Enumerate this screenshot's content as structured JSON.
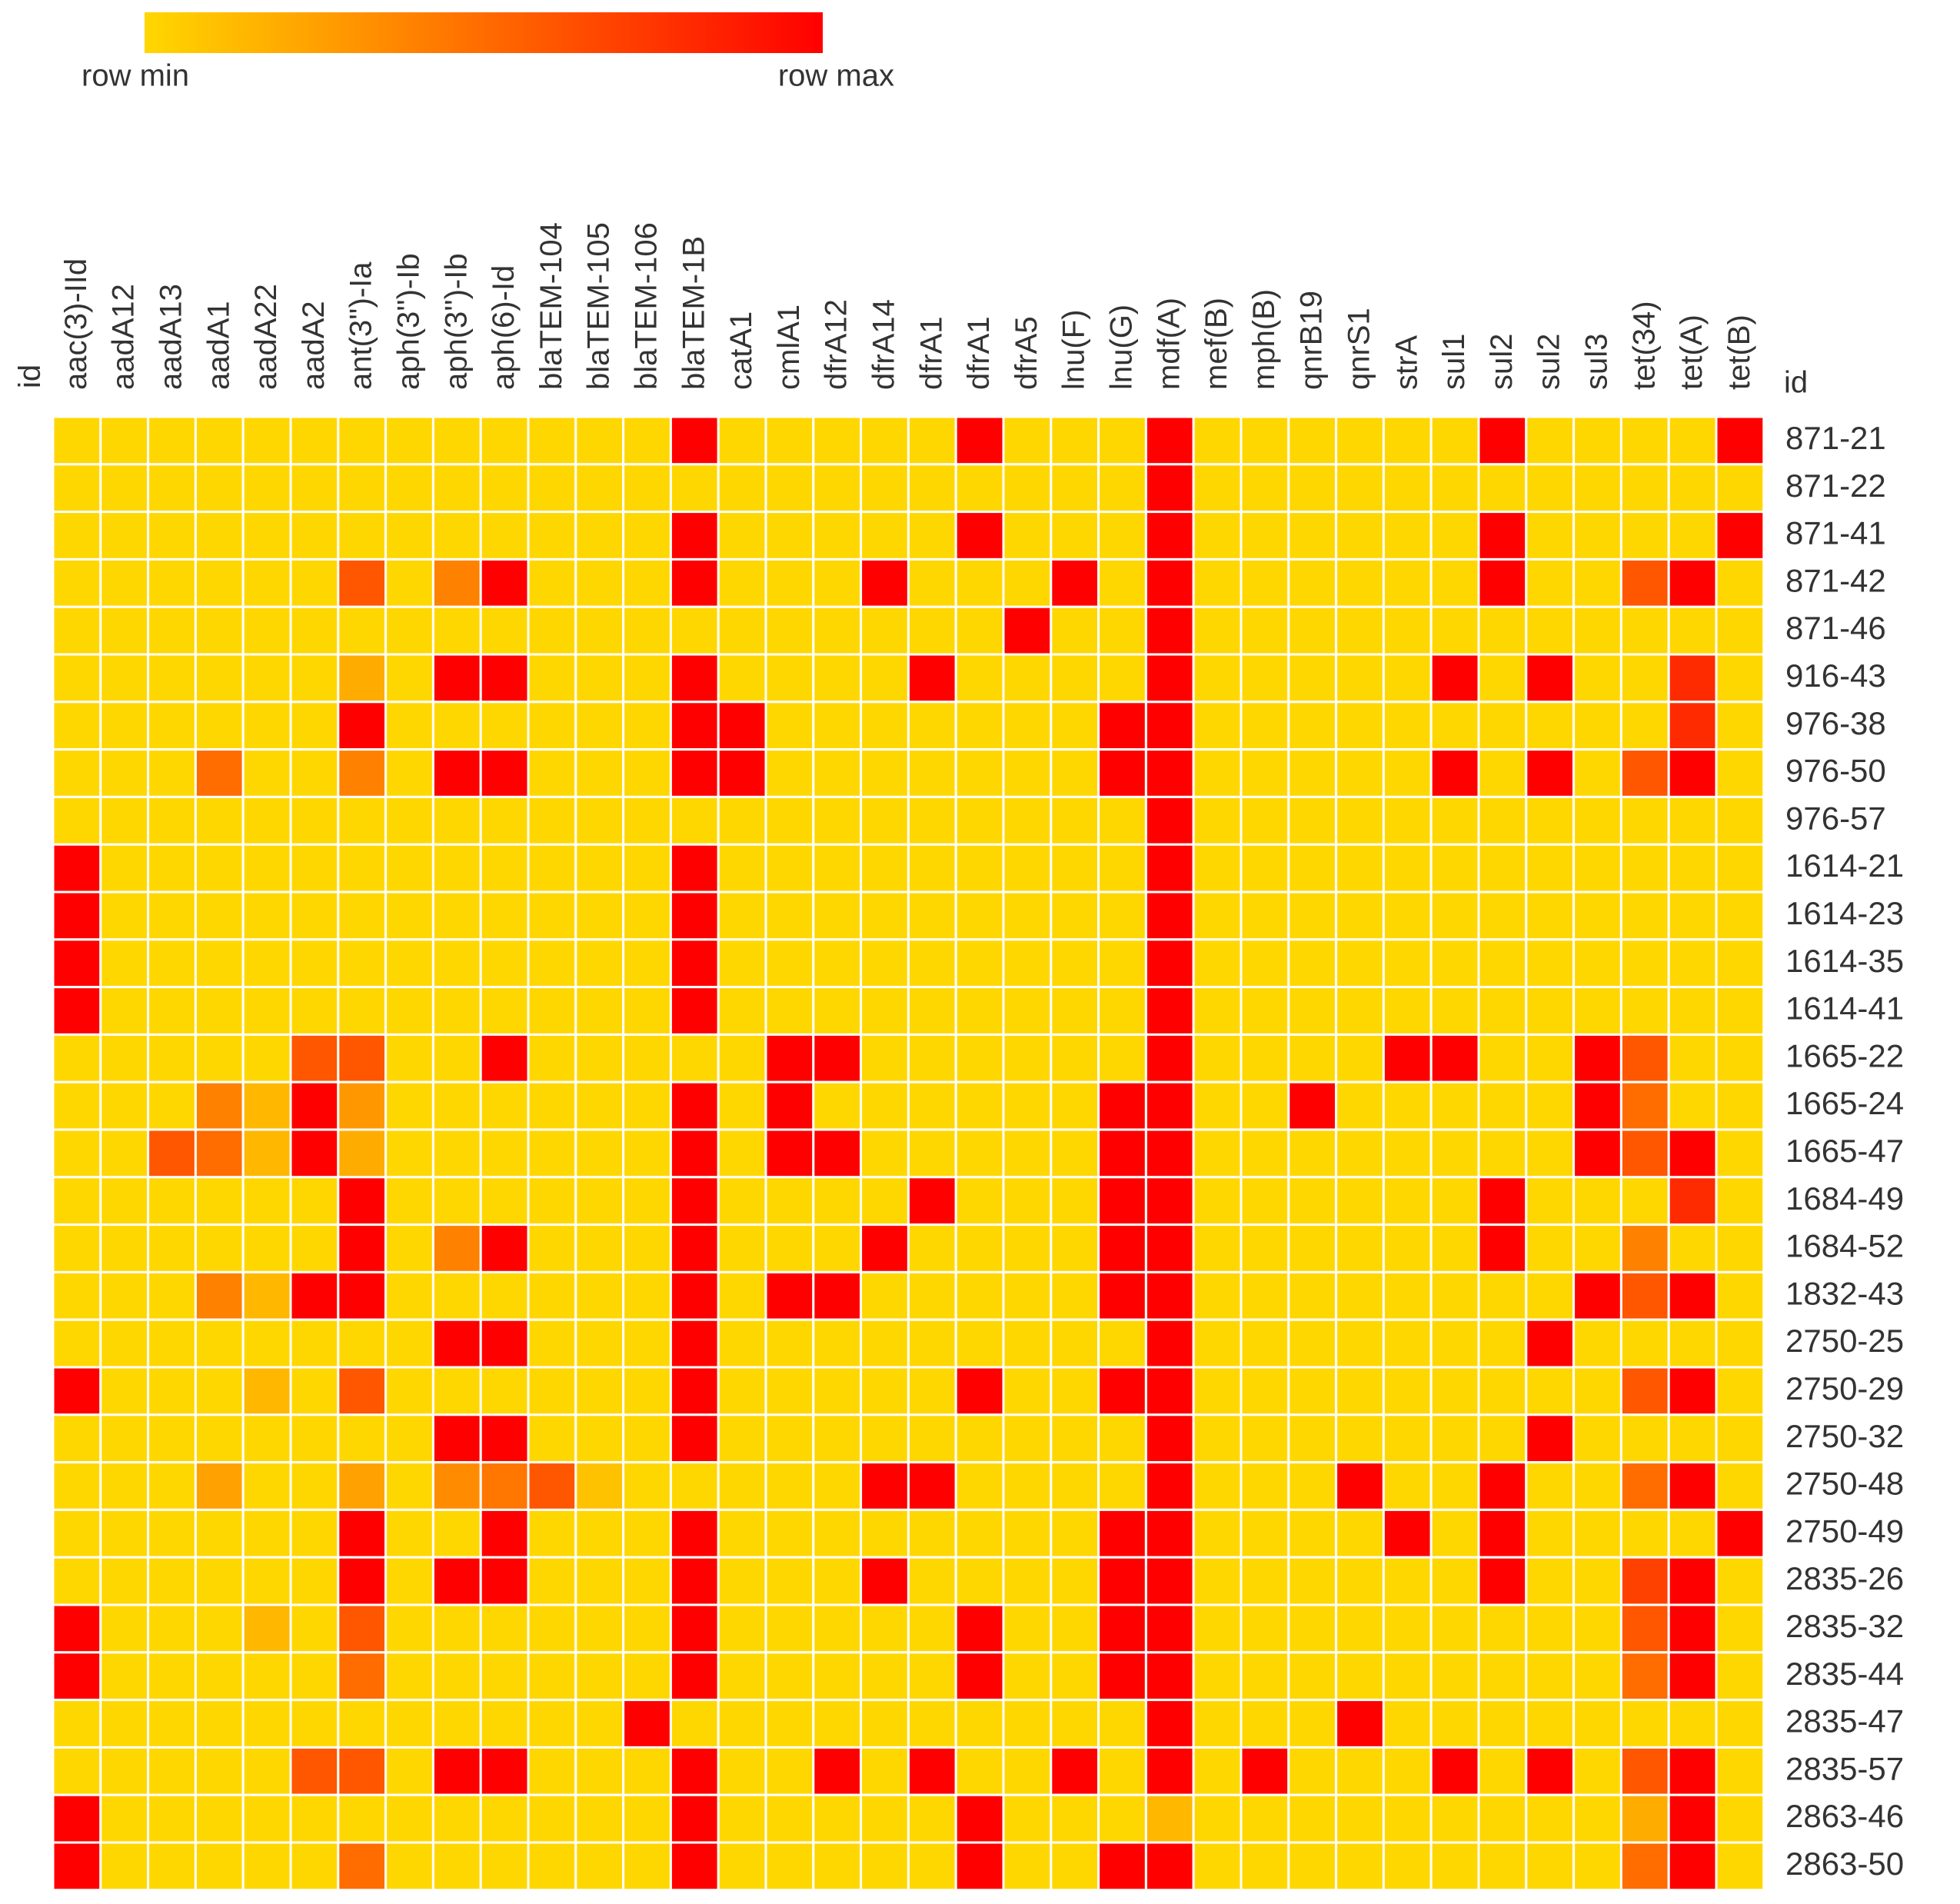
{
  "chart_data": {
    "type": "heatmap",
    "legend": {
      "min_label": "row min",
      "max_label": "row max"
    },
    "colorscale": [
      "#ffd700",
      "#ff0000"
    ],
    "column_header": "id",
    "row_header": "id",
    "columns": [
      "aac(3)-IId",
      "aadA12",
      "aadA13",
      "aadA1",
      "aadA22",
      "aadA2",
      "ant(3'')-Ia",
      "aph(3'')-Ib",
      "aph(3'')-Ib",
      "aph(6)-Id",
      "blaTEM-104",
      "blaTEM-105",
      "blaTEM-106",
      "blaTEM-1B",
      "catA1",
      "cmlA1",
      "dfrA12",
      "dfrA14",
      "dfrA1",
      "dfrA1",
      "dfrA5",
      "lnu(F)",
      "lnu(G)",
      "mdf(A)",
      "mef(B)",
      "mph(B)",
      "qnrB19",
      "qnrS1",
      "strA",
      "sul1",
      "sul2",
      "sul2",
      "sul3",
      "tet(34)",
      "tet(A)",
      "tet(B)"
    ],
    "rows": [
      "871-21",
      "871-22",
      "871-41",
      "871-42",
      "871-46",
      "916-43",
      "976-38",
      "976-50",
      "976-57",
      "1614-21",
      "1614-23",
      "1614-35",
      "1614-41",
      "1665-22",
      "1665-24",
      "1665-47",
      "1684-49",
      "1684-52",
      "1832-43",
      "2750-25",
      "2750-29",
      "2750-32",
      "2750-48",
      "2750-49",
      "2835-26",
      "2835-32",
      "2835-44",
      "2835-47",
      "2835-57",
      "2863-46",
      "2863-50"
    ],
    "values": [
      [
        0,
        0,
        0,
        0,
        0,
        0,
        0,
        0,
        0,
        0,
        0,
        0,
        0,
        1,
        0,
        0,
        0,
        0,
        0,
        1,
        0,
        0,
        0,
        1,
        0,
        0,
        0,
        0,
        0,
        0,
        1,
        0,
        0,
        0,
        0,
        1
      ],
      [
        0,
        0,
        0,
        0,
        0,
        0,
        0,
        0,
        0,
        0,
        0,
        0,
        0,
        0,
        0,
        0,
        0,
        0,
        0,
        0,
        0,
        0,
        0,
        1,
        0,
        0,
        0,
        0,
        0,
        0,
        0,
        0,
        0,
        0,
        0,
        0
      ],
      [
        0,
        0,
        0,
        0,
        0,
        0,
        0,
        0,
        0,
        0,
        0,
        0,
        0,
        1,
        0,
        0,
        0,
        0,
        0,
        1,
        0,
        0,
        0,
        1,
        0,
        0,
        0,
        0,
        0,
        0,
        1,
        0,
        0,
        0,
        0,
        1
      ],
      [
        0,
        0,
        0,
        0,
        0,
        0,
        0.6,
        0,
        0.4,
        1,
        0,
        0,
        0,
        1,
        0,
        0,
        0,
        1,
        0,
        0,
        0,
        1,
        0,
        1,
        0,
        0,
        0,
        0,
        0,
        0,
        1,
        0,
        0,
        0.6,
        1,
        0
      ],
      [
        0,
        0,
        0,
        0,
        0,
        0,
        0,
        0,
        0,
        0,
        0,
        0,
        0,
        0,
        0,
        0,
        0,
        0,
        0,
        0,
        1,
        0,
        0,
        1,
        0,
        0,
        0,
        0,
        0,
        0,
        0,
        0,
        0,
        0,
        0,
        0
      ],
      [
        0,
        0,
        0,
        0,
        0,
        0,
        0.2,
        0,
        1,
        1,
        0,
        0,
        0,
        1,
        0,
        0,
        0,
        0,
        1,
        0,
        0,
        0,
        0,
        1,
        0,
        0,
        0,
        0,
        0,
        1,
        0,
        1,
        0,
        0,
        0.8,
        0
      ],
      [
        0,
        0,
        0,
        0,
        0,
        0,
        1,
        0,
        0,
        0,
        0,
        0,
        0,
        1,
        1,
        0,
        0,
        0,
        0,
        0,
        0,
        0,
        1,
        1,
        0,
        0,
        0,
        0,
        0,
        0,
        0,
        0,
        0,
        0,
        0.8,
        0
      ],
      [
        0,
        0,
        0,
        0.5,
        0,
        0,
        0.4,
        0,
        1,
        1,
        0,
        0,
        0,
        1,
        1,
        0,
        0,
        0,
        0,
        0,
        0,
        0,
        1,
        1,
        0,
        0,
        0,
        0,
        0,
        1,
        0,
        1,
        0,
        0.6,
        1,
        0
      ],
      [
        0,
        0,
        0,
        0,
        0,
        0,
        0,
        0,
        0,
        0,
        0,
        0,
        0,
        0,
        0,
        0,
        0,
        0,
        0,
        0,
        0,
        0,
        0,
        1,
        0,
        0,
        0,
        0,
        0,
        0,
        0,
        0,
        0,
        0,
        0,
        0
      ],
      [
        1,
        0,
        0,
        0,
        0,
        0,
        0,
        0,
        0,
        0,
        0,
        0,
        0,
        1,
        0,
        0,
        0,
        0,
        0,
        0,
        0,
        0,
        0,
        1,
        0,
        0,
        0,
        0,
        0,
        0,
        0,
        0,
        0,
        0,
        0,
        0
      ],
      [
        1,
        0,
        0,
        0,
        0,
        0,
        0,
        0,
        0,
        0,
        0,
        0,
        0,
        1,
        0,
        0,
        0,
        0,
        0,
        0,
        0,
        0,
        0,
        1,
        0,
        0,
        0,
        0,
        0,
        0,
        0,
        0,
        0,
        0,
        0,
        0
      ],
      [
        1,
        0,
        0,
        0,
        0,
        0,
        0,
        0,
        0,
        0,
        0,
        0,
        0,
        1,
        0,
        0,
        0,
        0,
        0,
        0,
        0,
        0,
        0,
        1,
        0,
        0,
        0,
        0,
        0,
        0,
        0,
        0,
        0,
        0,
        0,
        0
      ],
      [
        1,
        0,
        0,
        0,
        0,
        0,
        0,
        0,
        0,
        0,
        0,
        0,
        0,
        1,
        0,
        0,
        0,
        0,
        0,
        0,
        0,
        0,
        0,
        1,
        0,
        0,
        0,
        0,
        0,
        0,
        0,
        0,
        0,
        0,
        0,
        0
      ],
      [
        0,
        0,
        0,
        0,
        0,
        0.6,
        0.6,
        0,
        0,
        1,
        0,
        0,
        0,
        0,
        0,
        1,
        1,
        0,
        0,
        0,
        0,
        0,
        0,
        1,
        0,
        0,
        0,
        0,
        1,
        1,
        0,
        0,
        1,
        0.6,
        0,
        0
      ],
      [
        0,
        0,
        0,
        0.4,
        0.15,
        1,
        0.3,
        0,
        0,
        0,
        0,
        0,
        0,
        1,
        0,
        1,
        0,
        0,
        0,
        0,
        0,
        0,
        1,
        1,
        0,
        0,
        1,
        0,
        0,
        0,
        0,
        0,
        1,
        0.5,
        0,
        0
      ],
      [
        0,
        0,
        0.6,
        0.5,
        0.15,
        1,
        0.2,
        0,
        0,
        0,
        0,
        0,
        0,
        1,
        0,
        1,
        1,
        0,
        0,
        0,
        0,
        0,
        1,
        1,
        0,
        0,
        0,
        0,
        0,
        0,
        0,
        0,
        1,
        0.6,
        1,
        0
      ],
      [
        0,
        0,
        0,
        0,
        0,
        0,
        1,
        0,
        0,
        0,
        0,
        0,
        0,
        1,
        0,
        0,
        0,
        0,
        1,
        0,
        0,
        0,
        1,
        1,
        0,
        0,
        0,
        0,
        0,
        0,
        1,
        0,
        0,
        0,
        0.8,
        0
      ],
      [
        0,
        0,
        0,
        0,
        0,
        0,
        1,
        0,
        0.4,
        1,
        0,
        0,
        0,
        1,
        0,
        0,
        0,
        1,
        0,
        0,
        0,
        0,
        1,
        1,
        0,
        0,
        0,
        0,
        0,
        0,
        1,
        0,
        0,
        0.4,
        0,
        0
      ],
      [
        0,
        0,
        0,
        0.4,
        0.15,
        1,
        1,
        0,
        0,
        0,
        0,
        0,
        0,
        1,
        0,
        1,
        1,
        0,
        0,
        0,
        0,
        0,
        1,
        1,
        0,
        0,
        0,
        0,
        0,
        0,
        0,
        0,
        1,
        0.6,
        1,
        0
      ],
      [
        0,
        0,
        0,
        0,
        0,
        0,
        0,
        0,
        1,
        1,
        0,
        0,
        0,
        1,
        0,
        0,
        0,
        0,
        0,
        0,
        0,
        0,
        0,
        1,
        0,
        0,
        0,
        0,
        0,
        0,
        0,
        1,
        0,
        0,
        0,
        0
      ],
      [
        1,
        0,
        0,
        0,
        0.15,
        0,
        0.6,
        0,
        0,
        0,
        0,
        0,
        0,
        1,
        0,
        0,
        0,
        0,
        0,
        1,
        0,
        0,
        1,
        1,
        0,
        0,
        0,
        0,
        0,
        0,
        0,
        0,
        0,
        0.6,
        1,
        0
      ],
      [
        0,
        0,
        0,
        0,
        0,
        0,
        0,
        0,
        1,
        1,
        0,
        0,
        0,
        1,
        0,
        0,
        0,
        0,
        0,
        0,
        0,
        0,
        0,
        1,
        0,
        0,
        0,
        0,
        0,
        0,
        0,
        1,
        0,
        0,
        0,
        0
      ],
      [
        0,
        0,
        0,
        0.25,
        0,
        0,
        0.25,
        0,
        0.35,
        0.45,
        0.6,
        0.1,
        0,
        0,
        0,
        0,
        0,
        1,
        1,
        0,
        0,
        0,
        0,
        1,
        0,
        0,
        0,
        1,
        0,
        0,
        1,
        0,
        0,
        0.5,
        1,
        0
      ],
      [
        0,
        0,
        0,
        0,
        0,
        0,
        1,
        0,
        0,
        1,
        0,
        0,
        0,
        1,
        0,
        0,
        0,
        0,
        0,
        0,
        0,
        0,
        1,
        1,
        0,
        0,
        0,
        0,
        1,
        0,
        1,
        0,
        0,
        0,
        0,
        1
      ],
      [
        0,
        0,
        0,
        0,
        0,
        0,
        1,
        0,
        1,
        1,
        0,
        0,
        0,
        1,
        0,
        0,
        0,
        1,
        0,
        0,
        0,
        0,
        1,
        1,
        0,
        0,
        0,
        0,
        0,
        0,
        1,
        0,
        0,
        0.7,
        1,
        0
      ],
      [
        1,
        0,
        0,
        0,
        0.15,
        0,
        0.6,
        0,
        0,
        0,
        0,
        0,
        0,
        1,
        0,
        0,
        0,
        0,
        0,
        1,
        0,
        0,
        1,
        1,
        0,
        0,
        0,
        0,
        0,
        0,
        0,
        0,
        0,
        0.6,
        1,
        0
      ],
      [
        1,
        0,
        0,
        0,
        0,
        0,
        0.5,
        0,
        0,
        0,
        0,
        0,
        0,
        1,
        0,
        0,
        0,
        0,
        0,
        1,
        0,
        0,
        1,
        1,
        0,
        0,
        0,
        0,
        0,
        0,
        0,
        0,
        0,
        0.5,
        1,
        0
      ],
      [
        0,
        0,
        0,
        0,
        0,
        0,
        0,
        0,
        0,
        0,
        0,
        0,
        1,
        0,
        0,
        0,
        0,
        0,
        0,
        0,
        0,
        0,
        0,
        1,
        0,
        0,
        0,
        1,
        0,
        0,
        0,
        0,
        0,
        0,
        0,
        0
      ],
      [
        0,
        0,
        0,
        0,
        0,
        0.6,
        0.6,
        0,
        1,
        1,
        0,
        0,
        0,
        1,
        0,
        0,
        1,
        0,
        1,
        0,
        0,
        1,
        0,
        1,
        0,
        1,
        0,
        0,
        0,
        1,
        0,
        1,
        0,
        0.6,
        1,
        0
      ],
      [
        1,
        0,
        0,
        0,
        0,
        0,
        0,
        0,
        0,
        0,
        0,
        0,
        0,
        1,
        0,
        0,
        0,
        0,
        0,
        1,
        0,
        0,
        0,
        0.15,
        0,
        0,
        0,
        0,
        0,
        0,
        0,
        0,
        0,
        0.2,
        1,
        0
      ],
      [
        1,
        0,
        0,
        0,
        0,
        0,
        0.5,
        0,
        0,
        0,
        0,
        0,
        0,
        1,
        0,
        0,
        0,
        0,
        0,
        1,
        0,
        0,
        1,
        1,
        0,
        0,
        0,
        0,
        0,
        0,
        0,
        0,
        0,
        0.5,
        1,
        0
      ]
    ]
  }
}
